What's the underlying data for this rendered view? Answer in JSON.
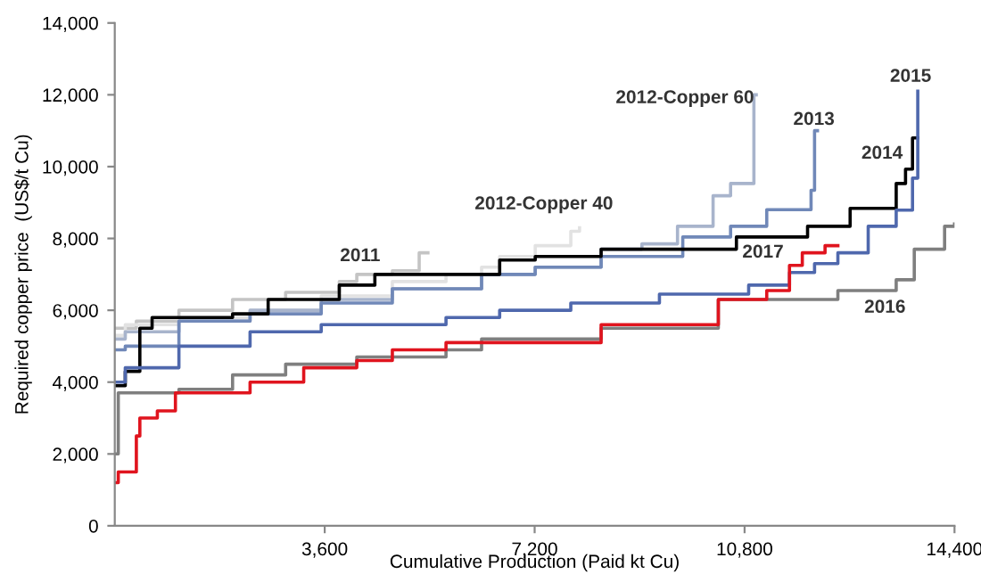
{
  "chart_data": {
    "type": "step",
    "xlabel": "Cumulative Production (Paid kt Cu)",
    "ylabel": "Required copper price  (US$/t Cu)",
    "xlim": [
      0,
      14400
    ],
    "ylim": [
      0,
      14000
    ],
    "xticks": [
      {
        "value": 3600,
        "label": "3,600"
      },
      {
        "value": 7200,
        "label": "7,200"
      },
      {
        "value": 10800,
        "label": "10,800"
      },
      {
        "value": 14400,
        "label": "14,400"
      }
    ],
    "yticks": [
      {
        "value": 0,
        "label": "0"
      },
      {
        "value": 2000,
        "label": "2,000"
      },
      {
        "value": 4000,
        "label": "4,000"
      },
      {
        "value": 6000,
        "label": "6,000"
      },
      {
        "value": 8000,
        "label": "8,000"
      },
      {
        "value": 10000,
        "label": "10,000"
      },
      {
        "value": 12000,
        "label": "12,000"
      },
      {
        "value": 14000,
        "label": "14,000"
      }
    ],
    "grid": false,
    "legend": false,
    "marker": "none",
    "line_style": "solid",
    "series": [
      {
        "name": "2011",
        "color": "#c4c4c4",
        "x": [
          0,
          370,
          1100,
          2020,
          2930,
          3850,
          4150,
          4760,
          5220,
          5370
        ],
        "values": [
          5500,
          5700,
          6000,
          6300,
          6500,
          6800,
          7000,
          7100,
          7600,
          7600
        ]
      },
      {
        "name": "2012-Copper 40",
        "color": "#e2e2e2",
        "x": [
          0,
          180,
          1100,
          2320,
          3540,
          4760,
          5680,
          6290,
          6600,
          7210,
          7820,
          7970
        ],
        "values": [
          5300,
          5600,
          5800,
          6000,
          6400,
          6800,
          7000,
          7200,
          7500,
          7800,
          8200,
          8300
        ]
      },
      {
        "name": "2012-Copper 60",
        "color": "#a8b4cc",
        "x": [
          0,
          180,
          1100,
          2320,
          3540,
          4760,
          6290,
          7210,
          8340,
          9040,
          9650,
          10260,
          10560,
          10960,
          11000
        ],
        "values": [
          5200,
          5400,
          5700,
          6000,
          6300,
          6600,
          7000,
          7200,
          7700,
          7850,
          8340,
          9190,
          9530,
          12000,
          12000
        ]
      },
      {
        "name": "2013",
        "color": "#7088b8",
        "x": [
          0,
          180,
          1100,
          2320,
          3540,
          4760,
          6290,
          7210,
          8340,
          9740,
          10560,
          11180,
          11940,
          12000,
          12050
        ],
        "values": [
          4900,
          5000,
          5700,
          5900,
          6200,
          6600,
          7000,
          7200,
          7500,
          8040,
          8340,
          8800,
          9340,
          11000,
          11000
        ]
      },
      {
        "name": "2014",
        "color": "#000000",
        "x": [
          0,
          180,
          430,
          640,
          2020,
          2630,
          3850,
          4460,
          6600,
          7210,
          8340,
          10660,
          11880,
          12610,
          13400,
          13560,
          13680,
          13770
        ],
        "values": [
          3900,
          4300,
          5500,
          5800,
          5900,
          6300,
          6700,
          7000,
          7400,
          7500,
          7700,
          8040,
          8340,
          8840,
          9530,
          9930,
          10800,
          10800
        ]
      },
      {
        "name": "2015",
        "color": "#4f68ad",
        "x": [
          0,
          180,
          1100,
          2320,
          3540,
          5680,
          6600,
          7820,
          9340,
          10870,
          11570,
          12000,
          12400,
          12920,
          13400,
          13680,
          13770
        ],
        "values": [
          4000,
          4400,
          5000,
          5400,
          5600,
          5800,
          6000,
          6200,
          6450,
          6700,
          7050,
          7300,
          7600,
          8340,
          8790,
          9680,
          12100
        ]
      },
      {
        "name": "2016",
        "color": "#7f7f7f",
        "x": [
          0,
          60,
          1100,
          2020,
          2930,
          4150,
          5680,
          6290,
          8340,
          10350,
          12400,
          13400,
          13710,
          14230,
          14400
        ],
        "values": [
          2000,
          3700,
          3800,
          4200,
          4500,
          4700,
          4900,
          5200,
          5500,
          6300,
          6550,
          6850,
          7700,
          8340,
          8400
        ]
      },
      {
        "name": "2017",
        "color": "#e0141e",
        "x": [
          0,
          60,
          370,
          430,
          730,
          1040,
          2320,
          3240,
          4150,
          4760,
          5680,
          6290,
          8340,
          10350,
          11180,
          11570,
          11790,
          12180,
          12400
        ],
        "values": [
          1200,
          1500,
          2500,
          3000,
          3200,
          3700,
          4000,
          4400,
          4600,
          4900,
          5100,
          5100,
          5600,
          6300,
          6550,
          7250,
          7600,
          7800,
          7800
        ]
      }
    ]
  }
}
